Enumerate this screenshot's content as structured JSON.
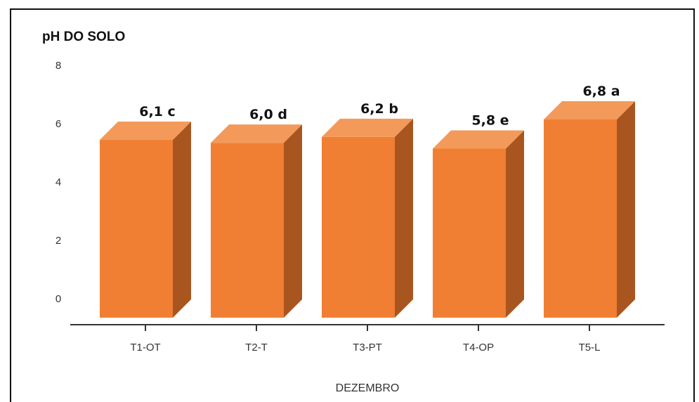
{
  "chart_data": {
    "type": "bar",
    "ylabel": "pH DO SOLO",
    "xlabel": "DEZEMBRO",
    "categories": [
      "T1-OT",
      "T2-T",
      "T3-PT",
      "T4-OP",
      "T5-L"
    ],
    "values": [
      6.1,
      6.0,
      6.2,
      5.8,
      6.8
    ],
    "data_labels": [
      "6,1 c",
      "6,0 d",
      "6,2 b",
      "5,8 e",
      "6,8 a"
    ],
    "yticks": [
      "0",
      "2",
      "4",
      "6",
      "8"
    ],
    "ylim": [
      0,
      8
    ],
    "grid": false,
    "legend": "none",
    "colors": {
      "bar_front": "#f07f33",
      "bar_top": "#f39a5a",
      "bar_side": "#a9551f",
      "axis": "#333333"
    }
  }
}
